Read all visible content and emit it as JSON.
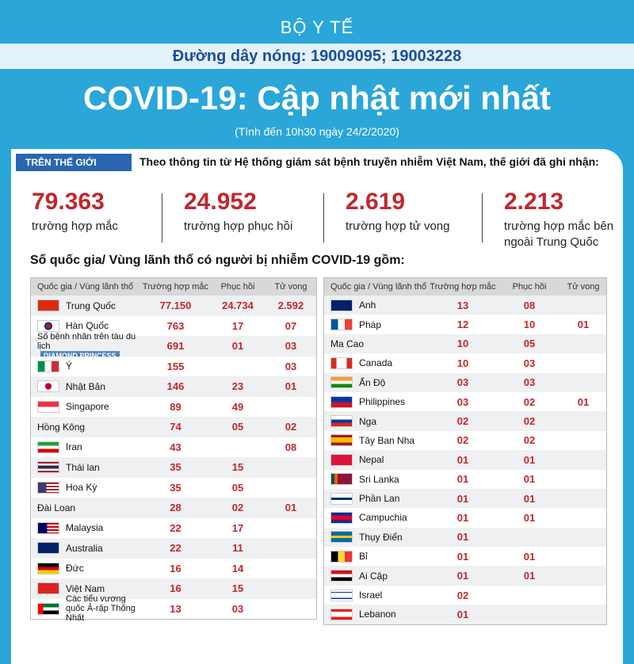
{
  "header": {
    "agency": "BỘ Y TẾ",
    "hotline": "Đường dây nóng: 19009095; 19003228",
    "title": "COVID-19: Cập nhật mới nhất",
    "subtitle": "(Tính đến 10h30 ngày 24/2/2020)"
  },
  "section": {
    "label": "TRÊN THẾ GIỚI",
    "intro": "Theo thông tin từ Hệ thống giám sát bệnh truyền nhiễm Việt Nam, thế giới đã ghi nhận:"
  },
  "stats": [
    {
      "value": "79.363",
      "label": "trường hợp mắc"
    },
    {
      "value": "24.952",
      "label": "trường hợp phục hồi"
    },
    {
      "value": "2.619",
      "label": "trường hợp tử vong"
    },
    {
      "value": "2.213",
      "label": "trường hợp mắc bên ngoài Trung Quốc"
    }
  ],
  "table_heading": "Số quốc gia/ Vùng lãnh thổ có người bị nhiễm COVID-19 gồm:",
  "columns": [
    "Quốc gia / Vùng lãnh thổ",
    "Trường hợp mắc",
    "Phục hồi",
    "Tử vong"
  ],
  "ship_name": "DIAMOND PRINCESS",
  "table_left": {
    "rows": [
      [
        "Trung Quốc",
        "77.150",
        "24.734",
        "2.592"
      ],
      [
        "Hàn Quốc",
        "763",
        "17",
        "07"
      ],
      [
        "Số bệnh nhân trên tàu du lịch",
        "691",
        "01",
        "03"
      ],
      [
        "Ý",
        "155",
        null,
        "03"
      ],
      [
        "Nhật Bản",
        "146",
        "23",
        "01"
      ],
      [
        "Singapore",
        "89",
        "49",
        null
      ],
      [
        "Hồng Kông",
        "74",
        "05",
        "02"
      ],
      [
        "Iran",
        "43",
        null,
        "08"
      ],
      [
        "Thái lan",
        "35",
        "15",
        null
      ],
      [
        "Hoa Kỳ",
        "35",
        "05",
        null
      ],
      [
        "Đài Loan",
        "28",
        "02",
        "01"
      ],
      [
        "Malaysia",
        "22",
        "17",
        null
      ],
      [
        "Australia",
        "22",
        "11",
        null
      ],
      [
        "Đức",
        "16",
        "14",
        null
      ],
      [
        "Việt Nam",
        "16",
        "15",
        null
      ],
      [
        "Các tiểu vương quốc Ả-rập Thống Nhất",
        "13",
        "03",
        null
      ]
    ]
  },
  "table_right": {
    "rows": [
      [
        "Anh",
        "13",
        "08",
        null
      ],
      [
        "Pháp",
        "12",
        "10",
        "01"
      ],
      [
        "Ma Cao",
        "10",
        "05",
        null
      ],
      [
        "Canada",
        "10",
        "03",
        null
      ],
      [
        "Ấn Độ",
        "03",
        "03",
        null
      ],
      [
        "Philippines",
        "03",
        "02",
        "01"
      ],
      [
        "Nga",
        "02",
        "02",
        null
      ],
      [
        "Tây Ban Nha",
        "02",
        "02",
        null
      ],
      [
        "Nepal",
        "01",
        "01",
        null
      ],
      [
        "Sri Lanka",
        "01",
        "01",
        null
      ],
      [
        "Phần Lan",
        "01",
        "01",
        null
      ],
      [
        "Campuchia",
        "01",
        "01",
        null
      ],
      [
        "Thụy Điển",
        "01",
        null,
        null
      ],
      [
        "Bỉ",
        "01",
        "01",
        null
      ],
      [
        "Ai Cập",
        "01",
        "01",
        null
      ],
      [
        "Israel",
        "02",
        null,
        null
      ],
      [
        "Lebanon",
        "01",
        null,
        null
      ]
    ]
  }
}
